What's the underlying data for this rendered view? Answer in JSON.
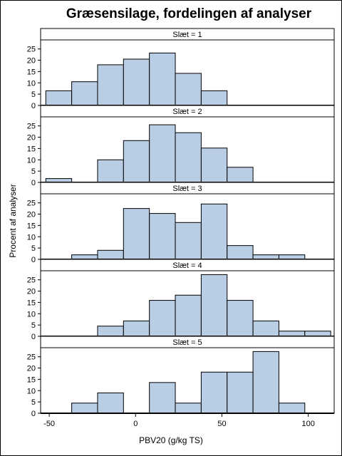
{
  "chart_data": {
    "type": "bar",
    "title": "Græsensilage, fordelingen af analyser",
    "xlabel": "PBV20 (g/kg TS)",
    "ylabel": "Procent af analyser",
    "bar_color": "#b9cde5",
    "xlim": [
      -55,
      115
    ],
    "ylim": [
      0,
      29
    ],
    "x_ticks": [
      -50,
      0,
      50,
      100
    ],
    "y_ticks": [
      0,
      5,
      10,
      15,
      20,
      25
    ],
    "bin_width": 15,
    "panels": [
      {
        "label": "Slæt = 1",
        "bins": [
          {
            "x": -52,
            "y": 6.5
          },
          {
            "x": -37,
            "y": 10.5
          },
          {
            "x": -22,
            "y": 18
          },
          {
            "x": -7,
            "y": 20.5
          },
          {
            "x": 8,
            "y": 23.2
          },
          {
            "x": 23,
            "y": 14.2
          },
          {
            "x": 38,
            "y": 6.5
          }
        ]
      },
      {
        "label": "Slæt = 2",
        "bins": [
          {
            "x": -52,
            "y": 1.7
          },
          {
            "x": -22,
            "y": 10
          },
          {
            "x": -7,
            "y": 18.5
          },
          {
            "x": 8,
            "y": 25.5
          },
          {
            "x": 23,
            "y": 22
          },
          {
            "x": 38,
            "y": 15.2
          },
          {
            "x": 53,
            "y": 6.7
          }
        ]
      },
      {
        "label": "Slæt = 3",
        "bins": [
          {
            "x": -37,
            "y": 2
          },
          {
            "x": -22,
            "y": 4
          },
          {
            "x": -7,
            "y": 22.5
          },
          {
            "x": 8,
            "y": 20.3
          },
          {
            "x": 23,
            "y": 16.3
          },
          {
            "x": 38,
            "y": 24.5
          },
          {
            "x": 53,
            "y": 6.1
          },
          {
            "x": 68,
            "y": 2
          },
          {
            "x": 83,
            "y": 2
          }
        ]
      },
      {
        "label": "Slæt = 4",
        "bins": [
          {
            "x": -22,
            "y": 4.5
          },
          {
            "x": -7,
            "y": 6.8
          },
          {
            "x": 8,
            "y": 15.9
          },
          {
            "x": 23,
            "y": 18.2
          },
          {
            "x": 38,
            "y": 27.3
          },
          {
            "x": 53,
            "y": 15.9
          },
          {
            "x": 68,
            "y": 6.8
          },
          {
            "x": 83,
            "y": 2.3
          },
          {
            "x": 98,
            "y": 2.3
          }
        ]
      },
      {
        "label": "Slæt = 5",
        "bins": [
          {
            "x": -37,
            "y": 4.5
          },
          {
            "x": -22,
            "y": 9
          },
          {
            "x": 8,
            "y": 13.6
          },
          {
            "x": 23,
            "y": 4.5
          },
          {
            "x": 38,
            "y": 18.2
          },
          {
            "x": 53,
            "y": 18.2
          },
          {
            "x": 68,
            "y": 27.3
          },
          {
            "x": 83,
            "y": 4.5
          }
        ]
      }
    ]
  }
}
